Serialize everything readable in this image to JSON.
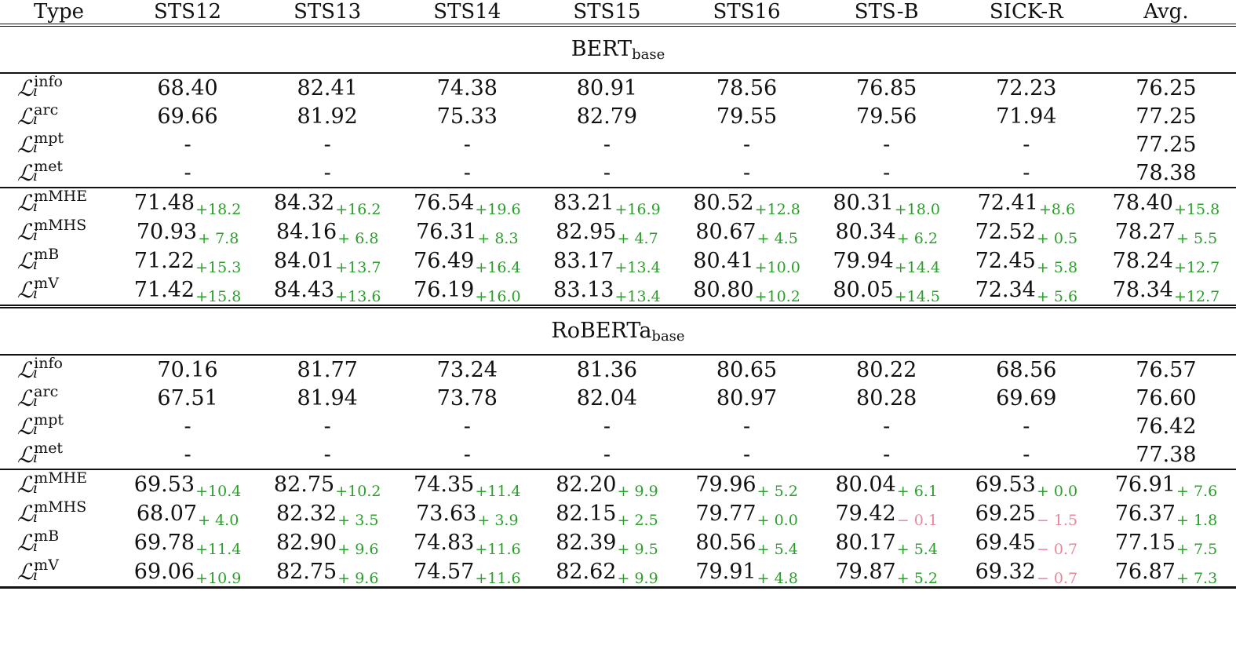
{
  "columns": [
    "Type",
    "STS12",
    "STS13",
    "STS14",
    "STS15",
    "STS16",
    "STS-B",
    "SICK-R",
    "Avg."
  ],
  "colors": {
    "positive_delta": "#2aa02a",
    "negative_delta": "#e8879a"
  },
  "groups": [
    {
      "model": "BERT",
      "model_sub": "base",
      "baselines": [
        {
          "loss": "L",
          "sub": "i",
          "sup": "info",
          "cells": [
            "68.40",
            "82.41",
            "74.38",
            "80.91",
            "78.56",
            "76.85",
            "72.23",
            "76.25"
          ]
        },
        {
          "loss": "L",
          "sub": "i",
          "sup": "arc",
          "cells": [
            "69.66",
            "81.92",
            "75.33",
            "82.79",
            "79.55",
            "79.56",
            "71.94",
            "77.25"
          ]
        },
        {
          "loss": "L",
          "sub": "i",
          "sup": "mpt",
          "cells": [
            "-",
            "-",
            "-",
            "-",
            "-",
            "-",
            "-",
            "77.25"
          ]
        },
        {
          "loss": "L",
          "sub": "i",
          "sup": "met",
          "cells": [
            "-",
            "-",
            "-",
            "-",
            "-",
            "-",
            "-",
            "78.38"
          ]
        }
      ],
      "methods": [
        {
          "loss": "L",
          "sub": "i",
          "sup": "mMHE",
          "cells": [
            {
              "v": "71.48",
              "d": "+18.2"
            },
            {
              "v": "84.32",
              "d": "+16.2"
            },
            {
              "v": "76.54",
              "d": "+19.6"
            },
            {
              "v": "83.21",
              "d": "+16.9"
            },
            {
              "v": "80.52",
              "d": "+12.8"
            },
            {
              "v": "80.31",
              "d": "+18.0"
            },
            {
              "v": "72.41",
              "d": "+8.6"
            },
            {
              "v": "78.40",
              "d": "+15.8"
            }
          ]
        },
        {
          "loss": "L",
          "sub": "i",
          "sup": "mMHS",
          "cells": [
            {
              "v": "70.93",
              "d": "+ 7.8"
            },
            {
              "v": "84.16",
              "d": "+ 6.8"
            },
            {
              "v": "76.31",
              "d": "+ 8.3"
            },
            {
              "v": "82.95",
              "d": "+ 4.7"
            },
            {
              "v": "80.67",
              "d": "+ 4.5"
            },
            {
              "v": "80.34",
              "d": "+ 6.2"
            },
            {
              "v": "72.52",
              "d": "+ 0.5"
            },
            {
              "v": "78.27",
              "d": "+ 5.5"
            }
          ]
        },
        {
          "loss": "L",
          "sub": "i",
          "sup": "mB",
          "cells": [
            {
              "v": "71.22",
              "d": "+15.3"
            },
            {
              "v": "84.01",
              "d": "+13.7"
            },
            {
              "v": "76.49",
              "d": "+16.4"
            },
            {
              "v": "83.17",
              "d": "+13.4"
            },
            {
              "v": "80.41",
              "d": "+10.0"
            },
            {
              "v": "79.94",
              "d": "+14.4"
            },
            {
              "v": "72.45",
              "d": "+ 5.8"
            },
            {
              "v": "78.24",
              "d": "+12.7"
            }
          ]
        },
        {
          "loss": "L",
          "sub": "i",
          "sup": "mV",
          "cells": [
            {
              "v": "71.42",
              "d": "+15.8"
            },
            {
              "v": "84.43",
              "d": "+13.6"
            },
            {
              "v": "76.19",
              "d": "+16.0"
            },
            {
              "v": "83.13",
              "d": "+13.4"
            },
            {
              "v": "80.80",
              "d": "+10.2"
            },
            {
              "v": "80.05",
              "d": "+14.5"
            },
            {
              "v": "72.34",
              "d": "+ 5.6"
            },
            {
              "v": "78.34",
              "d": "+12.7"
            }
          ]
        }
      ]
    },
    {
      "model": "RoBERTa",
      "model_sub": "base",
      "baselines": [
        {
          "loss": "L",
          "sub": "i",
          "sup": "info",
          "cells": [
            "70.16",
            "81.77",
            "73.24",
            "81.36",
            "80.65",
            "80.22",
            "68.56",
            "76.57"
          ]
        },
        {
          "loss": "L",
          "sub": "i",
          "sup": "arc",
          "cells": [
            "67.51",
            "81.94",
            "73.78",
            "82.04",
            "80.97",
            "80.28",
            "69.69",
            "76.60"
          ]
        },
        {
          "loss": "L",
          "sub": "i",
          "sup": "mpt",
          "cells": [
            "-",
            "-",
            "-",
            "-",
            "-",
            "-",
            "-",
            "76.42"
          ]
        },
        {
          "loss": "L",
          "sub": "i",
          "sup": "met",
          "cells": [
            "-",
            "-",
            "-",
            "-",
            "-",
            "-",
            "-",
            "77.38"
          ]
        }
      ],
      "methods": [
        {
          "loss": "L",
          "sub": "i",
          "sup": "mMHE",
          "cells": [
            {
              "v": "69.53",
              "d": "+10.4"
            },
            {
              "v": "82.75",
              "d": "+10.2"
            },
            {
              "v": "74.35",
              "d": "+11.4"
            },
            {
              "v": "82.20",
              "d": "+ 9.9"
            },
            {
              "v": "79.96",
              "d": "+ 5.2"
            },
            {
              "v": "80.04",
              "d": "+ 6.1"
            },
            {
              "v": "69.53",
              "d": "+ 0.0"
            },
            {
              "v": "76.91",
              "d": "+ 7.6"
            }
          ]
        },
        {
          "loss": "L",
          "sub": "i",
          "sup": "mMHS",
          "cells": [
            {
              "v": "68.07",
              "d": "+ 4.0"
            },
            {
              "v": "82.32",
              "d": "+ 3.5"
            },
            {
              "v": "73.63",
              "d": "+ 3.9"
            },
            {
              "v": "82.15",
              "d": "+ 2.5"
            },
            {
              "v": "79.77",
              "d": "+ 0.0"
            },
            {
              "v": "79.42",
              "d": "− 0.1"
            },
            {
              "v": "69.25",
              "d": "− 1.5"
            },
            {
              "v": "76.37",
              "d": "+ 1.8"
            }
          ]
        },
        {
          "loss": "L",
          "sub": "i",
          "sup": "mB",
          "cells": [
            {
              "v": "69.78",
              "d": "+11.4"
            },
            {
              "v": "82.90",
              "d": "+ 9.6"
            },
            {
              "v": "74.83",
              "d": "+11.6"
            },
            {
              "v": "82.39",
              "d": "+ 9.5"
            },
            {
              "v": "80.56",
              "d": "+ 5.4"
            },
            {
              "v": "80.17",
              "d": "+ 5.4"
            },
            {
              "v": "69.45",
              "d": "− 0.7"
            },
            {
              "v": "77.15",
              "d": "+ 7.5"
            }
          ]
        },
        {
          "loss": "L",
          "sub": "i",
          "sup": "mV",
          "cells": [
            {
              "v": "69.06",
              "d": "+10.9"
            },
            {
              "v": "82.75",
              "d": "+ 9.6"
            },
            {
              "v": "74.57",
              "d": "+11.6"
            },
            {
              "v": "82.62",
              "d": "+ 9.9"
            },
            {
              "v": "79.91",
              "d": "+ 4.8"
            },
            {
              "v": "79.87",
              "d": "+ 5.2"
            },
            {
              "v": "69.32",
              "d": "− 0.7"
            },
            {
              "v": "76.87",
              "d": "+ 7.3"
            }
          ]
        }
      ]
    }
  ]
}
